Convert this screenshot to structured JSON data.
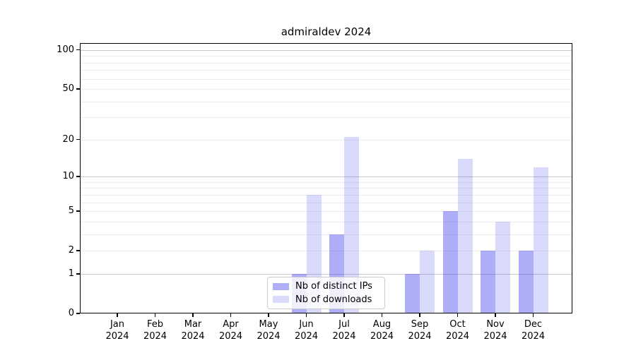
{
  "title": "admiraldev 2024",
  "chart_data": {
    "type": "bar",
    "title": "admiraldev 2024",
    "categories": [
      "Jan 2024",
      "Feb 2024",
      "Mar 2024",
      "Apr 2024",
      "May 2024",
      "Jun 2024",
      "Jul 2024",
      "Aug 2024",
      "Sep 2024",
      "Oct 2024",
      "Nov 2024",
      "Dec 2024"
    ],
    "series": [
      {
        "name": "Nb of distinct IPs",
        "values": [
          0,
          0,
          0,
          0,
          0,
          1,
          3,
          0,
          1,
          5,
          2,
          2
        ],
        "color": "rgba(80,80,240,0.47)",
        "color_hex_on_white": "#aaaaf8"
      },
      {
        "name": "Nb of downloads",
        "values": [
          0,
          0,
          0,
          0,
          0,
          7,
          21,
          0,
          2,
          14,
          4,
          12
        ],
        "color": "rgba(80,80,240,0.21)",
        "color_hex_on_white": "#dadaf8"
      }
    ],
    "xlabel": "",
    "ylabel": "",
    "yscale": "log1p",
    "ylim": [
      0,
      113
    ],
    "yticks": [
      0,
      1,
      2,
      5,
      10,
      20,
      50,
      100
    ],
    "grid": {
      "enabled": true,
      "major_values": [
        1,
        10,
        100
      ],
      "minor_values": [
        2,
        3,
        4,
        5,
        6,
        7,
        8,
        9,
        20,
        30,
        40,
        50,
        60,
        70,
        80,
        90
      ]
    },
    "legend_position": "lower center inside plot",
    "bar_layout": "grouped, two bars per month"
  }
}
